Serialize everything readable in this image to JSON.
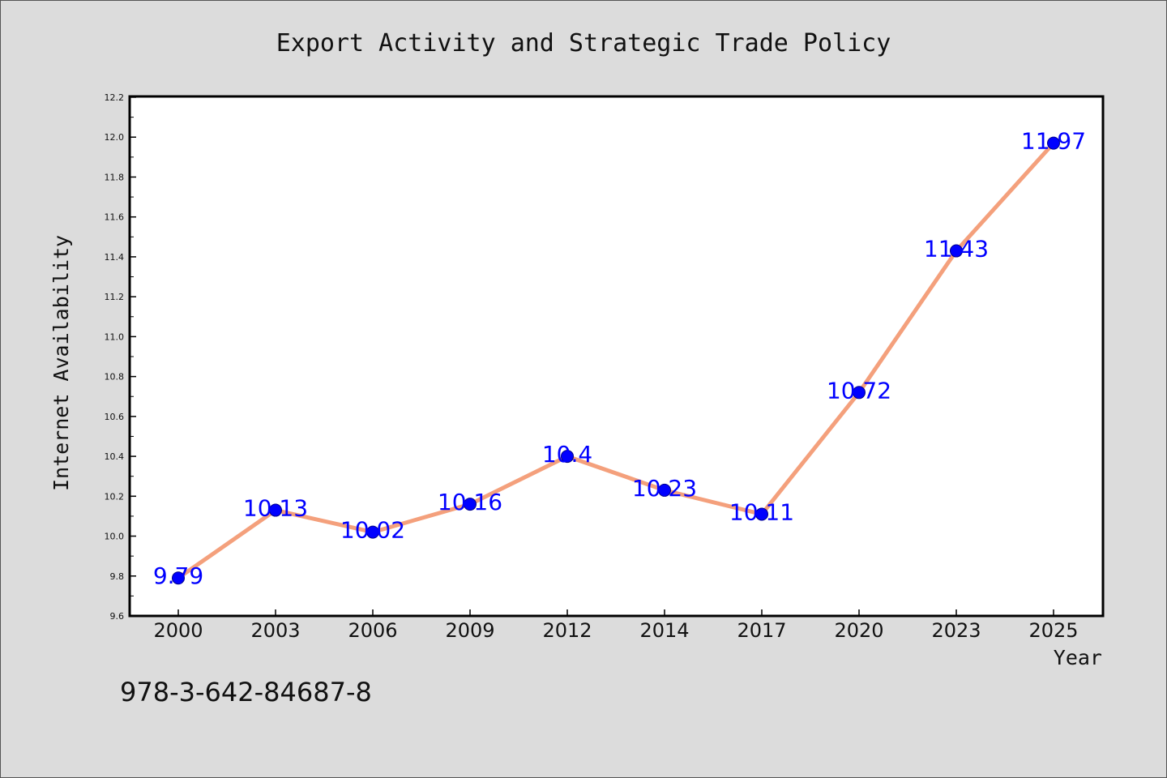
{
  "chart_data": {
    "type": "line",
    "title": "Export Activity and Strategic Trade Policy",
    "xlabel": "Year",
    "ylabel": "Internet Availability",
    "categories": [
      "2000",
      "2003",
      "2006",
      "2009",
      "2012",
      "2014",
      "2017",
      "2020",
      "2023",
      "2025"
    ],
    "series": [
      {
        "values": [
          9.79,
          10.13,
          10.02,
          10.16,
          10.4,
          10.23,
          10.11,
          10.72,
          11.43,
          11.97
        ],
        "data_labels": [
          "9.79",
          "10.13",
          "10.02",
          "10.16",
          "10.4",
          "10.23",
          "10.11",
          "10.72",
          "11.43",
          "11.97"
        ]
      }
    ],
    "ylim": [
      9.6,
      12.2
    ],
    "yticks": [
      "9.6",
      "9.8",
      "10.0",
      "10.2",
      "10.4",
      "10.6",
      "10.8",
      "11.0",
      "11.2",
      "11.4",
      "11.6",
      "11.8",
      "12.0",
      "12.2"
    ],
    "grid": false,
    "legend": "none",
    "colors": {
      "line": "#f4a07c",
      "marker": "#0000ff",
      "label": "#0000ff",
      "plot_background": "#ffffff",
      "figure_background": "#dcdcdc"
    }
  },
  "annotation": {
    "isbn": "978-3-642-84687-8"
  }
}
